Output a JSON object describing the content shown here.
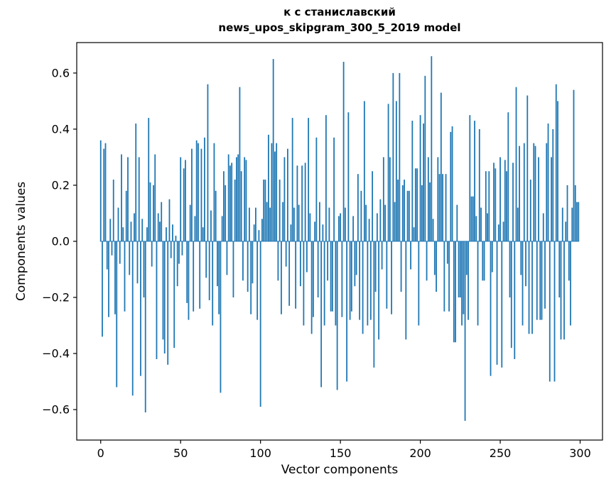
{
  "figure": {
    "title_line1": "к с станиславский",
    "title_line2": "news_upos_skipgram_300_5_2019 model",
    "xlabel": "Vector components",
    "ylabel": "Components values"
  },
  "chart_data": {
    "type": "bar",
    "title": "к с станиславский\nnews_upos_skipgram_300_5_2019 model",
    "xlabel": "Vector components",
    "ylabel": "Components values",
    "legend": "none",
    "grid": false,
    "bar_color": "#1f77b4",
    "xlim": [
      -15,
      314
    ],
    "ylim": [
      -0.7086,
      0.7086
    ],
    "x_ticks": {
      "values": [
        0,
        50,
        100,
        150,
        200,
        250,
        300
      ],
      "labels": [
        "0",
        "50",
        "100",
        "150",
        "200",
        "250",
        "300"
      ]
    },
    "y_ticks": {
      "values": [
        -0.6,
        -0.4,
        -0.2,
        0.0,
        0.2,
        0.4,
        0.6
      ],
      "labels": [
        "−0.6",
        "−0.4",
        "−0.2",
        "0.0",
        "0.2",
        "0.4",
        "0.6"
      ]
    },
    "x_description": "vector component index 0..299",
    "values": [
      0.36,
      -0.34,
      0.33,
      0.35,
      -0.1,
      -0.27,
      0.08,
      -0.05,
      0.22,
      -0.26,
      -0.52,
      0.12,
      -0.08,
      0.31,
      0.05,
      -0.25,
      0.18,
      0.3,
      -0.12,
      0.07,
      -0.55,
      0.1,
      0.42,
      -0.15,
      0.3,
      -0.48,
      0.08,
      -0.2,
      -0.61,
      0.05,
      0.44,
      0.21,
      -0.09,
      0.2,
      0.31,
      -0.42,
      0.1,
      0.07,
      0.14,
      -0.35,
      -0.4,
      0.05,
      -0.44,
      0.15,
      -0.06,
      0.06,
      -0.38,
      0.02,
      -0.16,
      -0.08,
      0.3,
      -0.05,
      0.26,
      0.29,
      -0.22,
      -0.28,
      0.13,
      0.33,
      -0.25,
      0.09,
      0.36,
      0.35,
      -0.24,
      0.33,
      0.05,
      0.37,
      -0.13,
      0.56,
      -0.21,
      0.11,
      -0.3,
      0.35,
      0.18,
      -0.16,
      -0.26,
      -0.54,
      0.09,
      0.25,
      0.2,
      -0.12,
      0.31,
      0.27,
      0.28,
      -0.2,
      0.22,
      0.3,
      0.31,
      0.55,
      0.25,
      -0.14,
      0.3,
      0.29,
      -0.18,
      0.12,
      -0.26,
      -0.15,
      0.06,
      0.12,
      -0.28,
      0.04,
      -0.59,
      0.08,
      0.22,
      0.22,
      0.14,
      0.38,
      0.12,
      0.35,
      0.65,
      0.32,
      0.35,
      -0.14,
      0.22,
      -0.26,
      0.14,
      0.3,
      -0.09,
      0.33,
      -0.23,
      0.06,
      0.44,
      0.12,
      -0.24,
      0.27,
      0.13,
      -0.16,
      0.27,
      -0.3,
      0.28,
      -0.11,
      0.44,
      0.1,
      -0.33,
      -0.27,
      0.07,
      0.37,
      -0.2,
      0.14,
      -0.52,
      0.06,
      -0.3,
      0.45,
      -0.14,
      0.12,
      -0.25,
      -0.25,
      0.37,
      -0.3,
      -0.53,
      0.09,
      0.1,
      -0.27,
      0.64,
      0.12,
      -0.5,
      0.46,
      -0.28,
      -0.25,
      0.09,
      -0.16,
      -0.12,
      0.24,
      -0.28,
      0.18,
      -0.33,
      0.5,
      0.13,
      -0.3,
      0.08,
      -0.28,
      0.25,
      -0.45,
      -0.18,
      0.1,
      -0.35,
      0.15,
      -0.1,
      0.3,
      0.13,
      -0.24,
      0.49,
      0.3,
      -0.26,
      0.6,
      0.14,
      0.5,
      0.22,
      0.6,
      -0.18,
      0.2,
      0.22,
      -0.35,
      0.18,
      0.18,
      -0.1,
      0.43,
      0.05,
      0.26,
      0.26,
      -0.3,
      0.45,
      0.2,
      0.42,
      0.59,
      -0.14,
      0.3,
      0.21,
      0.66,
      0.08,
      -0.12,
      -0.18,
      0.3,
      0.24,
      0.53,
      0.24,
      -0.25,
      0.24,
      -0.08,
      -0.25,
      0.39,
      0.41,
      -0.36,
      -0.36,
      0.13,
      -0.2,
      -0.2,
      -0.3,
      -0.26,
      -0.64,
      -0.12,
      -0.28,
      0.45,
      0.16,
      0.16,
      0.43,
      0.09,
      -0.3,
      0.4,
      0.12,
      -0.14,
      -0.14,
      0.25,
      0.1,
      0.25,
      -0.48,
      -0.11,
      0.28,
      0.26,
      -0.44,
      0.06,
      0.3,
      -0.45,
      0.07,
      0.29,
      0.25,
      0.46,
      -0.2,
      -0.38,
      0.28,
      -0.42,
      0.55,
      0.12,
      0.34,
      -0.12,
      -0.3,
      0.35,
      -0.16,
      0.52,
      -0.33,
      0.22,
      -0.33,
      0.35,
      0.34,
      -0.28,
      0.3,
      -0.28,
      -0.28,
      0.1,
      -0.24,
      0.35,
      0.42,
      -0.5,
      0.3,
      0.4,
      -0.5,
      0.56,
      0.5,
      -0.2,
      -0.35,
      0.12,
      -0.35,
      0.07,
      0.2,
      -0.14,
      -0.3,
      0.12,
      0.54,
      0.2,
      0.14,
      0.14
    ]
  }
}
